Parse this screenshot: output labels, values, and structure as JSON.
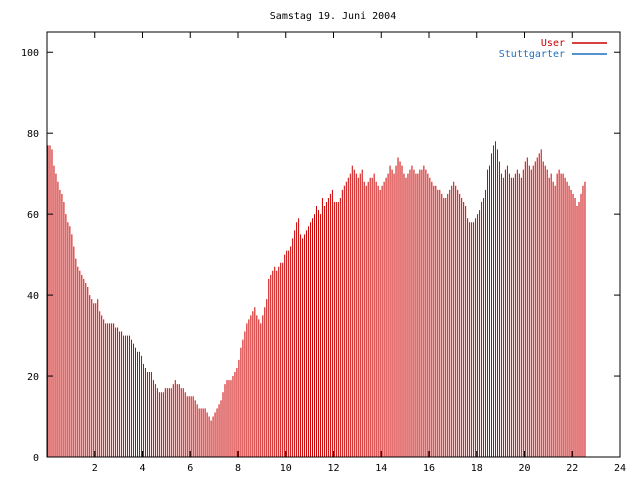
{
  "chart_data": {
    "type": "bar",
    "title": "Samstag 19. Juni 2004",
    "xlabel": "",
    "ylabel": "",
    "xlim": [
      0,
      24
    ],
    "ylim": [
      0,
      105
    ],
    "xticks": [
      2,
      4,
      6,
      8,
      10,
      12,
      14,
      16,
      18,
      20,
      22,
      24
    ],
    "yticks": [
      0,
      20,
      40,
      60,
      80,
      100
    ],
    "grid": false,
    "legend": "top-right",
    "bar_step_hours": 0.0833,
    "series": [
      {
        "name": "User",
        "color": "#cc0000",
        "values": [
          77,
          77,
          76,
          72,
          70,
          68,
          66,
          65,
          63,
          60,
          58,
          57,
          55,
          52,
          49,
          47,
          46,
          45,
          44,
          43,
          42,
          40,
          39,
          38,
          38,
          39,
          36,
          35,
          34,
          33,
          33,
          33,
          33,
          33,
          32,
          32,
          31,
          31,
          30,
          30,
          30,
          30,
          29,
          28,
          27,
          26,
          26,
          25,
          23,
          22,
          21,
          21,
          21,
          19,
          18,
          17,
          16,
          16,
          16,
          17,
          17,
          17,
          17,
          18,
          19,
          18,
          18,
          17,
          17,
          16,
          15,
          15,
          15,
          15,
          14,
          13,
          12,
          12,
          12,
          12,
          11,
          10,
          9,
          10,
          11,
          12,
          13,
          14,
          16,
          18,
          19,
          19,
          19,
          20,
          21,
          22,
          24,
          27,
          29,
          31,
          33,
          34,
          35,
          36,
          37,
          35,
          34,
          33,
          35,
          37,
          39,
          44,
          45,
          46,
          47,
          46,
          47,
          48,
          48,
          50,
          51,
          51,
          52,
          54,
          56,
          58,
          59,
          55,
          54,
          55,
          56,
          57,
          58,
          59,
          60,
          62,
          61,
          60,
          64,
          62,
          63,
          64,
          65,
          66,
          63,
          63,
          63,
          64,
          66,
          67,
          68,
          69,
          70,
          72,
          71,
          70,
          69,
          70,
          71,
          68,
          67,
          68,
          69,
          69,
          70,
          68,
          67,
          66,
          67,
          68,
          69,
          70,
          72,
          71,
          70,
          72,
          74,
          73,
          72,
          70,
          69,
          70,
          71,
          72,
          71,
          70,
          70,
          71,
          71,
          72,
          71,
          70,
          69,
          68,
          67,
          67,
          66,
          66,
          65,
          64,
          64,
          65,
          66,
          67,
          68,
          67,
          66,
          65,
          64,
          63,
          62,
          59,
          58,
          58,
          58,
          59,
          60,
          61,
          63,
          64,
          66,
          71,
          72,
          75,
          77,
          78,
          76,
          73,
          70,
          69,
          71,
          72,
          70,
          69,
          69,
          70,
          71,
          70,
          69,
          71,
          73,
          74,
          72,
          71,
          72,
          73,
          74,
          75,
          76,
          73,
          72,
          71,
          69,
          70,
          68,
          67,
          70,
          71,
          70,
          70,
          69,
          68,
          67,
          66,
          65,
          64,
          62,
          63,
          65,
          67,
          68
        ]
      },
      {
        "name": "Stuttgarter",
        "color": "#1f6fbf",
        "values": []
      }
    ]
  }
}
